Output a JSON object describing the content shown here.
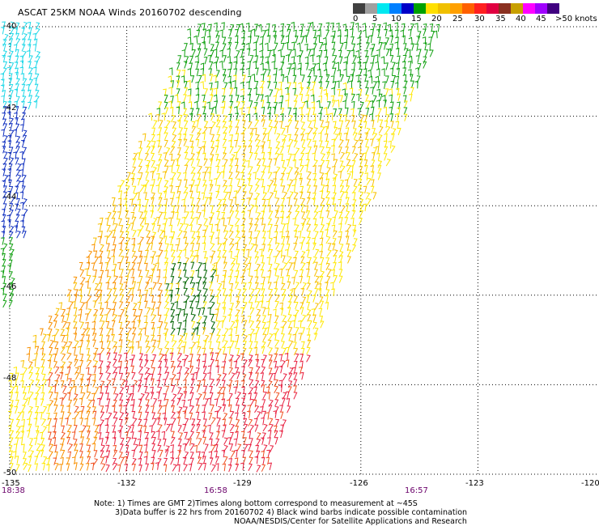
{
  "title": "ASCAT 25KM NOAA Winds 20160702 descending",
  "legend": {
    "labels": [
      "0",
      "5",
      "10",
      "15",
      "20",
      "25",
      "30",
      "35",
      "40",
      "45",
      ">50 knots"
    ],
    "colors": [
      "#404040",
      "#a0a0a0",
      "#00e8f0",
      "#0080ff",
      "#0000c8",
      "#00a000",
      "#ffe000",
      "#f0c000",
      "#ffa000",
      "#ff6000",
      "#ff2020",
      "#e00040",
      "#8a3020",
      "#c8a000",
      "#ff00ff",
      "#a000ff",
      "#400080"
    ]
  },
  "axes": {
    "lat_labels": [
      "-40",
      "-42",
      "-44",
      "-46",
      "-48",
      "-50"
    ],
    "lon_labels": [
      "-135",
      "-132",
      "-129",
      "-126",
      "-123",
      "-120"
    ]
  },
  "times": {
    "t1": "18:38",
    "t2": "16:58",
    "t3": "16:57"
  },
  "notes": {
    "line1": "Note: 1) Times are GMT 2)Times along bottom correspond to measurement at ~45S",
    "line2": "3)Data buffer is 22 hrs from 20160702 4) Black wind barbs indicate possible contamination",
    "line3": "NOAA/NESDIS/Center for Satellite Applications and Research"
  },
  "map_data": {
    "lat_range": [
      -50,
      -40
    ],
    "lon_range": [
      -135,
      -120
    ],
    "colors": {
      "cyan": "#20d8e8",
      "blue": "#1030c0",
      "green": "#10a010",
      "dkgreen": "#006400",
      "yellow": "#ffe800",
      "ylorange": "#f8c000",
      "orange": "#f89000",
      "redorange": "#f05020",
      "red": "#e82040"
    }
  }
}
